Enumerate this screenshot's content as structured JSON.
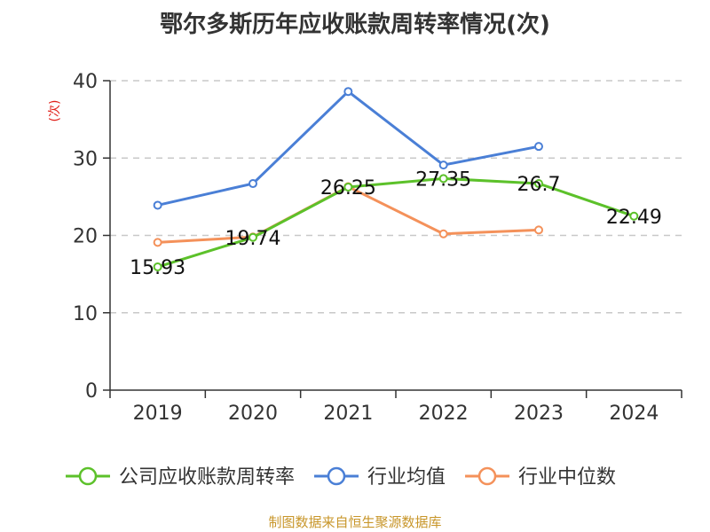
{
  "chart_data": {
    "type": "line",
    "title": "鄂尔多斯历年应收账款周转率情况(次)",
    "ylabel": "(次)",
    "xlabel": "",
    "categories": [
      "2019",
      "2020",
      "2021",
      "2022",
      "2023",
      "2024"
    ],
    "ylim": [
      0,
      40
    ],
    "yticks": [
      0,
      10,
      20,
      30,
      40
    ],
    "grid": true,
    "legend_position": "bottom",
    "series": [
      {
        "name": "公司应收账款周转率",
        "color": "#5cc12a",
        "values": [
          15.93,
          19.74,
          26.25,
          27.35,
          26.7,
          22.49
        ],
        "labels": [
          "15.93",
          "19.74",
          "26.25",
          "27.35",
          "26.7",
          "22.49"
        ]
      },
      {
        "name": "行业均值",
        "color": "#4a7fd6",
        "values": [
          23.9,
          26.7,
          38.6,
          29.1,
          31.5,
          null
        ]
      },
      {
        "name": "行业中位数",
        "color": "#f4915a",
        "values": [
          19.1,
          19.8,
          26.3,
          20.2,
          20.7,
          null
        ]
      }
    ],
    "source": "制图数据来自恒生聚源数据库"
  }
}
